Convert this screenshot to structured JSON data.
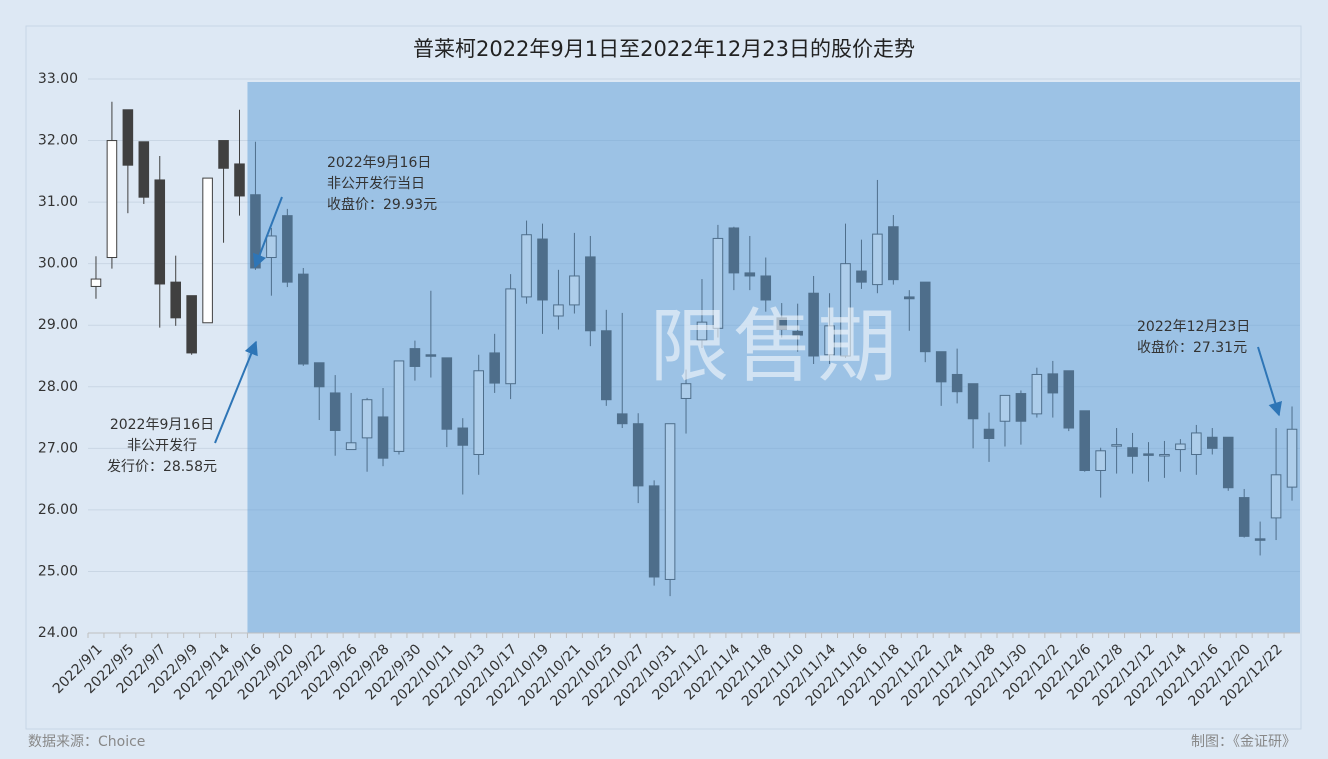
{
  "chart_data": {
    "type": "candlestick",
    "title": "普莱柯2022年9月1日至2022年12月23日的股价走势",
    "categories": [
      "2022/9/1",
      null,
      "2022/9/5",
      null,
      "2022/9/7",
      null,
      "2022/9/9",
      null,
      "2022/9/14",
      null,
      "2022/9/16",
      null,
      "2022/9/20",
      null,
      "2022/9/22",
      null,
      "2022/9/26",
      null,
      "2022/9/28",
      null,
      "2022/9/30",
      null,
      "2022/10/11",
      null,
      "2022/10/13",
      null,
      "2022/10/17",
      null,
      "2022/10/19",
      null,
      "2022/10/21",
      null,
      "2022/10/25",
      null,
      "2022/10/27",
      null,
      "2022/10/31",
      null,
      "2022/11/2",
      null,
      "2022/11/4",
      null,
      "2022/11/8",
      null,
      "2022/11/10",
      null,
      "2022/11/14",
      null,
      "2022/11/16",
      null,
      "2022/11/18",
      null,
      "2022/11/22",
      null,
      "2022/11/24",
      null,
      "2022/11/28",
      null,
      "2022/11/30",
      null,
      "2022/12/2",
      null,
      "2022/12/6",
      null,
      "2022/12/8",
      null,
      "2022/12/12",
      null,
      "2022/12/14",
      null,
      "2022/12/16",
      null,
      "2022/12/20",
      null,
      "2022/12/22",
      null
    ],
    "open": [
      29.63,
      30.1,
      32.5,
      31.98,
      31.36,
      29.7,
      29.48,
      29.04,
      32.0,
      31.62,
      31.12,
      30.1,
      30.78,
      29.83,
      28.39,
      27.9,
      26.98,
      27.17,
      27.51,
      26.95,
      28.62,
      28.52,
      28.47,
      27.33,
      26.9,
      28.55,
      28.05,
      29.46,
      30.4,
      29.15,
      29.33,
      30.11,
      28.91,
      27.56,
      27.4,
      26.39,
      24.87,
      27.81,
      28.76,
      28.95,
      30.58,
      29.85,
      29.8,
      29.12,
      28.9,
      29.52,
      28.52,
      28.5,
      29.88,
      29.66,
      30.6,
      29.46,
      29.7,
      28.57,
      28.2,
      28.05,
      27.31,
      27.44,
      27.89,
      27.56,
      28.21,
      28.26,
      27.61,
      26.64,
      27.04,
      27.01,
      26.91,
      26.89,
      26.98,
      26.9,
      27.18,
      27.18,
      26.2,
      25.53,
      25.87,
      26.37
    ],
    "high": [
      30.12,
      32.63,
      32.5,
      31.98,
      31.75,
      30.13,
      29.48,
      31.39,
      32.0,
      32.5,
      31.98,
      30.58,
      30.89,
      29.93,
      28.39,
      28.19,
      27.9,
      27.82,
      27.98,
      28.42,
      28.75,
      29.56,
      28.47,
      27.49,
      28.52,
      28.86,
      29.83,
      30.7,
      30.65,
      29.9,
      30.5,
      30.45,
      29.25,
      29.2,
      27.57,
      26.48,
      27.4,
      28.28,
      29.75,
      30.63,
      30.6,
      30.45,
      30.1,
      29.36,
      29.35,
      29.8,
      29.52,
      30.65,
      30.39,
      31.36,
      30.79,
      29.57,
      29.7,
      28.57,
      28.62,
      28.05,
      27.58,
      27.86,
      27.94,
      28.31,
      28.42,
      28.26,
      27.61,
      27.01,
      27.33,
      27.25,
      27.1,
      27.12,
      27.15,
      27.38,
      27.33,
      27.18,
      26.34,
      25.81,
      27.33,
      27.68
    ],
    "low": [
      29.43,
      29.92,
      30.82,
      30.97,
      28.96,
      28.99,
      28.52,
      29.04,
      30.34,
      30.78,
      29.9,
      29.48,
      29.62,
      28.34,
      27.46,
      26.88,
      26.98,
      26.62,
      26.71,
      26.9,
      28.1,
      28.15,
      27.02,
      26.25,
      26.57,
      27.9,
      27.8,
      29.35,
      28.86,
      28.93,
      29.19,
      28.66,
      27.69,
      27.33,
      26.11,
      24.77,
      24.6,
      27.24,
      28.63,
      28.8,
      29.57,
      29.57,
      29.22,
      28.8,
      28.57,
      28.37,
      28.37,
      28.47,
      29.59,
      29.52,
      29.66,
      28.91,
      28.4,
      27.69,
      27.73,
      27.0,
      26.78,
      27.03,
      27.06,
      27.5,
      27.5,
      27.28,
      26.62,
      26.2,
      26.59,
      26.59,
      26.46,
      26.52,
      26.62,
      26.57,
      26.9,
      26.31,
      25.55,
      25.26,
      25.51,
      26.15
    ],
    "close": [
      29.75,
      32.0,
      31.6,
      31.08,
      29.67,
      29.12,
      28.55,
      31.39,
      31.55,
      31.1,
      29.93,
      30.45,
      29.7,
      28.37,
      28.0,
      27.29,
      27.09,
      27.79,
      26.84,
      28.42,
      28.33,
      28.5,
      27.31,
      27.05,
      28.26,
      28.06,
      29.59,
      30.47,
      29.41,
      29.33,
      29.8,
      28.91,
      27.79,
      27.4,
      26.39,
      24.91,
      27.4,
      28.05,
      29.05,
      30.41,
      29.85,
      29.8,
      29.41,
      28.93,
      28.84,
      28.5,
      28.99,
      30.0,
      29.7,
      30.48,
      29.74,
      29.43,
      28.57,
      28.08,
      27.92,
      27.48,
      27.16,
      27.86,
      27.44,
      28.2,
      27.9,
      27.33,
      26.64,
      26.96,
      27.06,
      26.87,
      26.9,
      26.9,
      27.07,
      27.25,
      27.0,
      26.36,
      25.57,
      25.52,
      26.57,
      27.31
    ],
    "up_color": "#ffffff",
    "down_color": "#404040",
    "ylim": [
      24,
      33
    ],
    "yticks": [
      {
        "value": 24,
        "label": "24.00"
      },
      {
        "value": 25,
        "label": "25.00"
      },
      {
        "value": 26,
        "label": "26.00"
      },
      {
        "value": 27,
        "label": "27.00"
      },
      {
        "value": 28,
        "label": "28.00"
      },
      {
        "value": 29,
        "label": "29.00"
      },
      {
        "value": 30,
        "label": "30.00"
      },
      {
        "value": 31,
        "label": "31.00"
      },
      {
        "value": 32,
        "label": "32.00"
      },
      {
        "value": 33,
        "label": "33.00"
      }
    ],
    "grid": true,
    "highlight": {
      "label": "限售期",
      "start": "2022/9/16",
      "color": "#5b9bd5"
    },
    "annotations": [
      {
        "lines": [
          "2022年9月16日",
          "非公开发行当日",
          "收盘价：29.93元"
        ]
      },
      {
        "lines": [
          "2022年9月16日",
          "非公开发行",
          "发行价：28.58元"
        ]
      },
      {
        "lines": [
          "2022年12月23日",
          "收盘价：27.31元"
        ]
      }
    ],
    "source": "数据来源：Choice",
    "credit": "制图：《金证研》"
  }
}
